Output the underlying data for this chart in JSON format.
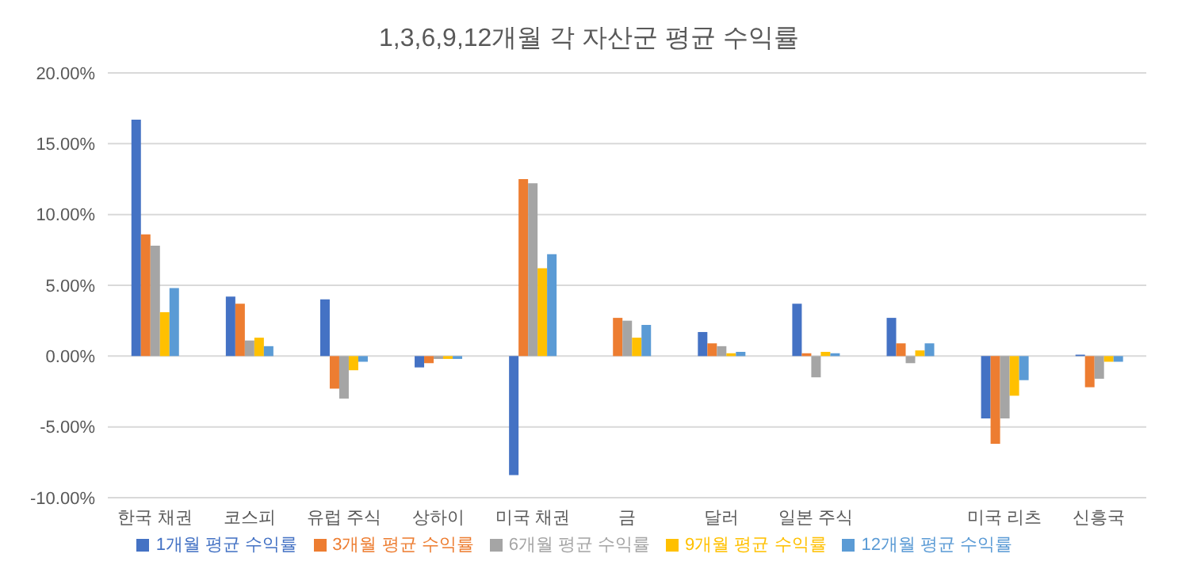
{
  "chart_data": {
    "type": "bar",
    "title": "1,3,6,9,12개월 각 자산군 평균 수익률",
    "categories": [
      "한국 채권",
      "코스피",
      "유럽 주식",
      "상하이",
      "미국 채권",
      "금",
      "달러",
      "일본 주식",
      null,
      "미국 리츠",
      "신흥국"
    ],
    "series": [
      {
        "name": "1개월 평균 수익률",
        "color": "#4472c4",
        "values": [
          16.7,
          4.2,
          4.0,
          -0.8,
          -8.4,
          0.0,
          1.7,
          3.7,
          2.7,
          -4.4,
          0.1
        ]
      },
      {
        "name": "3개월 평균 수익률",
        "color": "#ed7d31",
        "values": [
          8.6,
          3.7,
          -2.3,
          -0.5,
          12.5,
          2.7,
          0.9,
          0.2,
          0.9,
          -6.2,
          -2.2
        ]
      },
      {
        "name": "6개월 평균 수익률",
        "color": "#a5a5a5",
        "values": [
          7.8,
          1.1,
          -3.0,
          -0.2,
          12.2,
          2.5,
          0.7,
          -1.5,
          -0.5,
          -4.4,
          -1.6
        ]
      },
      {
        "name": "9개월 평균 수익률",
        "color": "#ffc000",
        "values": [
          3.1,
          1.3,
          -1.0,
          -0.2,
          6.2,
          1.3,
          0.2,
          0.3,
          0.4,
          -2.8,
          -0.4
        ]
      },
      {
        "name": "12개월 평균 수익률",
        "color": "#5b9bd5",
        "values": [
          4.8,
          0.7,
          -0.4,
          -0.2,
          7.2,
          2.2,
          0.3,
          0.2,
          0.9,
          -1.7,
          -0.4
        ]
      }
    ],
    "ylim": [
      -10,
      20
    ],
    "yticks": [
      {
        "value": -10,
        "label": "-10.00%"
      },
      {
        "value": -5,
        "label": "-5.00%"
      },
      {
        "value": 0,
        "label": "0.00%"
      },
      {
        "value": 5,
        "label": "5.00%"
      },
      {
        "value": 10,
        "label": "10.00%"
      },
      {
        "value": 15,
        "label": "15.00%"
      },
      {
        "value": 20,
        "label": "20.00%"
      }
    ],
    "grid": "y",
    "legend": "bottom"
  }
}
